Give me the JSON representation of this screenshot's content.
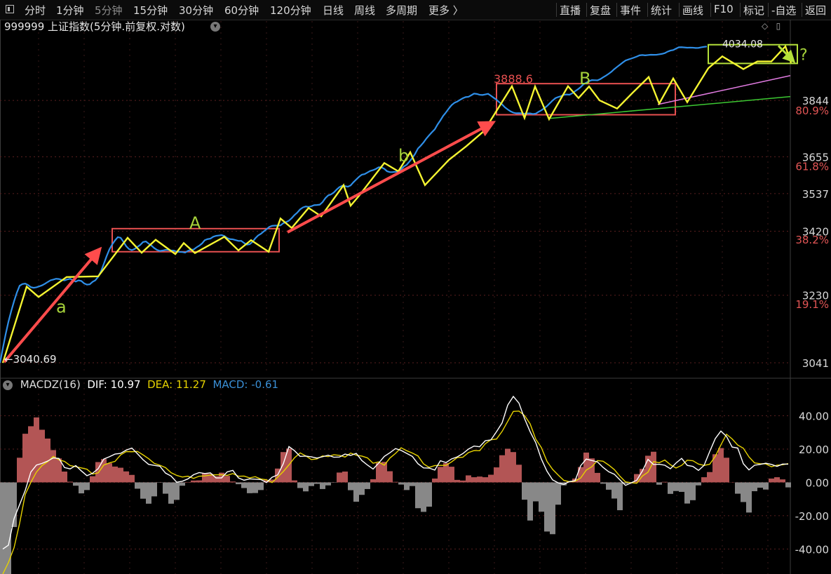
{
  "toolbar": {
    "left_tabs": [
      "分时",
      "1分钟",
      "5分钟",
      "15分钟",
      "30分钟",
      "60分钟",
      "120分钟",
      "日线",
      "周线",
      "多周期",
      "更多 〉"
    ],
    "active_tab": "5分钟",
    "right_tabs": [
      "直播",
      "复盘",
      "事件",
      "统计",
      "画线",
      "F10",
      "标记",
      "-自选",
      "返回"
    ]
  },
  "title": "999999 上证指数(5分钟.前复权.对数)",
  "macd": {
    "name": "MACDZ(16)",
    "dif_label": "DIF: 10.97",
    "dea_label": "DEA: 11.27",
    "macd_label": "MACD: -0.61",
    "colors": {
      "dif": "#ffffff",
      "dea": "#e6d200",
      "macd_pos": "#b35555",
      "macd_neg": "#888888",
      "label": "#3a8fd6"
    }
  },
  "chart_data": [
    {
      "type": "line",
      "scale": "log",
      "ylim": [
        3020,
        4080
      ],
      "price_ticks": [
        {
          "value": 3844,
          "label": "3844"
        },
        {
          "value": 3655,
          "label": "3655"
        },
        {
          "value": 3537,
          "label": "3537"
        },
        {
          "value": 3420,
          "label": "3420"
        },
        {
          "value": 3230,
          "label": "3230"
        },
        {
          "value": 3041,
          "label": "3041"
        }
      ],
      "fib_levels": [
        {
          "value": 3810,
          "label": "80.9%"
        },
        {
          "value": 3625,
          "label": "61.8%"
        },
        {
          "value": 3395,
          "label": "38.2%"
        },
        {
          "value": 3205,
          "label": "19.1%"
        }
      ],
      "annotations": {
        "low": "3040.69",
        "high_b": "3888.6",
        "high_last": "4034.08",
        "wave_labels": [
          "a",
          "A",
          "b",
          "B",
          "?"
        ]
      },
      "price_x": [
        0,
        4,
        8,
        12,
        16,
        20,
        24,
        28,
        32,
        36,
        40,
        44,
        48,
        52,
        56,
        60,
        64,
        68,
        72,
        76,
        80,
        84,
        88,
        92,
        96,
        100,
        104,
        108,
        112,
        116,
        120,
        124,
        128,
        132,
        136,
        140,
        144,
        148,
        152,
        156,
        160,
        164,
        168,
        172,
        176,
        180,
        184,
        188,
        192,
        196,
        200,
        204,
        208,
        212,
        216,
        220,
        224,
        228,
        232,
        236,
        240,
        244,
        248,
        252,
        256,
        260,
        264,
        268,
        272,
        276,
        280,
        284,
        288,
        292,
        296,
        300,
        304,
        308,
        312,
        316,
        320,
        324,
        328,
        332,
        336,
        340,
        344,
        348,
        352,
        356,
        360,
        364,
        368,
        372,
        376,
        380,
        384,
        388,
        392,
        396,
        400,
        404,
        408,
        412,
        416,
        420,
        424,
        428,
        432,
        436,
        440,
        444,
        448,
        452,
        456,
        460,
        464,
        468,
        472,
        476,
        480,
        484,
        488,
        492,
        496,
        500,
        504,
        508,
        512,
        516,
        520,
        524,
        528,
        532,
        536,
        540,
        544,
        548,
        552,
        556,
        560,
        564,
        568,
        572,
        576,
        580,
        584,
        588,
        592,
        596,
        600,
        604,
        608,
        612,
        616,
        620,
        624,
        628,
        632,
        636,
        640,
        644,
        648,
        652,
        656,
        660,
        664,
        668,
        672,
        676,
        680,
        684,
        688,
        692,
        696,
        700,
        704,
        708,
        712,
        716,
        720,
        724,
        728,
        732,
        736,
        740,
        744,
        748,
        752,
        756,
        760,
        764,
        768,
        772,
        776,
        780,
        784,
        788,
        792,
        796,
        800,
        804,
        808,
        812,
        816,
        820,
        824,
        828,
        832,
        836,
        840,
        844,
        848,
        852,
        856,
        860,
        864,
        868,
        872,
        876,
        880,
        884,
        888,
        892,
        896,
        900,
        904,
        908,
        912,
        916,
        920,
        924,
        928,
        932,
        936,
        940,
        944,
        948,
        952,
        956,
        960,
        964,
        968,
        972,
        976,
        980,
        984,
        988,
        992,
        996,
        1000,
        1004,
        1008,
        1012,
        1016,
        1020,
        1024,
        1028,
        1032,
        1036,
        1040,
        1044,
        1048,
        1052,
        1056,
        1060,
        1064,
        1068,
        1072,
        1076,
        1080,
        1084,
        1088,
        1092,
        1096,
        1100,
        1104,
        1108,
        1112,
        1116,
        1120
      ],
      "price": [
        3040.7,
        3080.1,
        3118.8,
        3154.2,
        3184.5,
        3212.5,
        3237.4,
        3257.6,
        3262.5,
        3263.8,
        3259.6,
        3253.4,
        3251.6,
        3252.9,
        3255.7,
        3258.8,
        3263.1,
        3268.4,
        3273.3,
        3275.5,
        3277.9,
        3277.2,
        3274.8,
        3273.0,
        3275.9,
        3277.8,
        3273.4,
        3269.7,
        3273.2,
        3271.4,
        3264.3,
        3260.8,
        3261.7,
        3268.9,
        3273.4,
        3283.8,
        3299.4,
        3321.6,
        3344.4,
        3364.8,
        3380.0,
        3392.1,
        3402.1,
        3400.2,
        3388.1,
        3374.5,
        3365.9,
        3362.7,
        3366.3,
        3372.6,
        3378.4,
        3387.3,
        3389.1,
        3382.4,
        3376.2,
        3368.8,
        3363.3,
        3360.4,
        3361.6,
        3363.5,
        3363.4,
        3361.6,
        3361.5,
        3358.2,
        3357.5,
        3357.0,
        3355.3,
        3360.5,
        3363.8,
        3364.5,
        3370.9,
        3375.9,
        3382.7,
        3392.8,
        3396.1,
        3397.6,
        3403.2,
        3405.9,
        3407.1,
        3408.3,
        3405.4,
        3399.2,
        3396.0,
        3395.4,
        3393.1,
        3390.6,
        3390.7,
        3384.4,
        3379.3,
        3380.4,
        3387.5,
        3398.4,
        3407.1,
        3412.2,
        3419.3,
        3426.0,
        3433.3,
        3436.5,
        3437.3,
        3437.3,
        3437.9,
        3444.7,
        3448.0,
        3452.4,
        3460.4,
        3469.9,
        3477.6,
        3487.5,
        3493.6,
        3496.5,
        3495.1,
        3497.3,
        3500.6,
        3501.1,
        3502.2,
        3510.2,
        3522.6,
        3531.2,
        3534.5,
        3540.4,
        3549.6,
        3557.5,
        3561.7,
        3560.8,
        3558.8,
        3562.9,
        3573.1,
        3581.9,
        3590.5,
        3597.3,
        3599.2,
        3604.2,
        3609.4,
        3611.8,
        3615.8,
        3621.1,
        3620.8,
        3616.1,
        3608.1,
        3605.4,
        3605.6,
        3606.5,
        3607.9,
        3614.2,
        3623.7,
        3629.3,
        3640.1,
        3651.5,
        3664.9,
        3682.3,
        3691.6,
        3702.4,
        3715.3,
        3726.2,
        3736.3,
        3746.0,
        3762.3,
        3776.1,
        3791.4,
        3803.1,
        3816.2,
        3827.9,
        3835.6,
        3840.0,
        3845.9,
        3851.4,
        3855.3,
        3856.4,
        3861.7,
        3867.4,
        3866.2,
        3863.4,
        3862.6,
        3864.5,
        3866.7,
        3860.2,
        3853.1,
        3846.4,
        3837.7,
        3830.2,
        3820.2,
        3812.9,
        3806.6,
        3802.2,
        3800.1,
        3800.5,
        3799.8,
        3798.4,
        3799.6,
        3799.5,
        3797.5,
        3798.9,
        3805.0,
        3810.2,
        3817.0,
        3824.6,
        3834.1,
        3843.5,
        3851.7,
        3855.6,
        3858.5,
        3863.1,
        3864.3,
        3863.6,
        3868.4,
        3875.6,
        3882.1,
        3889.8,
        3899.6,
        3905.4,
        3910.8,
        3914.3,
        3913.9,
        3913.4,
        3917.7,
        3924.1,
        3930.0,
        3936.5,
        3943.8,
        3952.9,
        3960.8,
        3968.3,
        3976.2,
        3983.5,
        3986.9,
        3990.2,
        3993.7,
        3997.5,
        4001.8,
        4003.0,
        4001.8,
        4002.9,
        4004.0,
        4003.6,
        4003.9,
        4005.5,
        4007.1,
        4009.7,
        4015.1,
        4018.9,
        4020.7,
        4025.9,
        4030.7,
        4031.0,
        4030.2,
        4029.2,
        4029.6,
        4029.3,
        4028.2,
        4028.6,
        4030.5,
        4032.3,
        4033.5
      ],
      "zigzag_x": [
        4,
        38,
        55,
        95,
        140,
        182,
        202,
        222,
        250,
        262,
        278,
        320,
        340,
        358,
        383,
        400,
        416,
        440,
        458,
        490,
        500,
        512,
        548,
        568,
        585,
        606,
        640,
        665,
        690,
        730,
        748,
        763,
        783,
        810,
        825,
        840,
        855,
        880,
        902,
        925,
        940,
        960,
        980,
        1010,
        1030,
        1060,
        1080,
        1100,
        1120,
        1128
      ],
      "zigzag": [
        3040.7,
        3255,
        3225,
        3283,
        3285,
        3400,
        3355,
        3394,
        3351,
        3384,
        3354,
        3403,
        3362,
        3393,
        3358,
        3459,
        3430,
        3492,
        3466,
        3564,
        3499,
        3530,
        3635,
        3608,
        3670,
        3564,
        3645,
        3690,
        3740,
        3893,
        3784,
        3892,
        3780,
        3893,
        3852,
        3892,
        3844,
        3816,
        3870,
        3925,
        3833,
        3920,
        3838,
        3956,
        3998,
        3953,
        3980,
        3980,
        4034,
        3975
      ],
      "boxes": [
        {
          "name": "A",
          "x0": 160,
          "x1": 398,
          "p_high": 3428,
          "p_low": 3358
        },
        {
          "name": "B",
          "x0": 708,
          "x1": 963,
          "p_high": 3902,
          "p_low": 3795
        },
        {
          "name": "last",
          "x0": 1010,
          "x1": 1137,
          "p_high": 4040,
          "p_low": 3973
        }
      ]
    },
    {
      "type": "bar",
      "series": [
        "DIF",
        "DEA",
        "MACD"
      ],
      "ylim": [
        -55,
        60
      ],
      "ticks": [
        {
          "value": 40,
          "label": "40.00"
        },
        {
          "value": 20,
          "label": "20.00"
        },
        {
          "value": 0,
          "label": "0.00"
        },
        {
          "value": -20,
          "label": "-20.00"
        },
        {
          "value": -40,
          "label": "-40.00"
        }
      ],
      "x": [
        0,
        8,
        16,
        24,
        32,
        40,
        48,
        56,
        64,
        72,
        80,
        88,
        96,
        104,
        112,
        120,
        128,
        136,
        144,
        152,
        160,
        168,
        176,
        184,
        192,
        200,
        208,
        216,
        224,
        232,
        240,
        248,
        256,
        264,
        272,
        280,
        288,
        296,
        304,
        312,
        320,
        328,
        336,
        344,
        352,
        360,
        368,
        376,
        384,
        392,
        400,
        408,
        416,
        424,
        432,
        440,
        448,
        456,
        464,
        472,
        480,
        488,
        496,
        504,
        512,
        520,
        528,
        536,
        544,
        552,
        560,
        568,
        576,
        584,
        592,
        600,
        608,
        616,
        624,
        632,
        640,
        648,
        656,
        664,
        672,
        680,
        688,
        696,
        704,
        712,
        720,
        728,
        736,
        744,
        752,
        760,
        768,
        776,
        784,
        792,
        800,
        808,
        816,
        824,
        832,
        840,
        848,
        856,
        864,
        872,
        880,
        888,
        896,
        904,
        912,
        920,
        928,
        936,
        944,
        952,
        960,
        968,
        976,
        984,
        992,
        1000,
        1008,
        1016,
        1024,
        1032,
        1040,
        1048,
        1056,
        1064,
        1072,
        1080,
        1088,
        1096,
        1104,
        1112,
        1120
      ],
      "dif": [
        -40.0,
        -37.7,
        -21.8,
        -13.3,
        -4.8,
        6.2,
        10.4,
        11.4,
        12.8,
        14.7,
        14.4,
        8.9,
        8.1,
        10.1,
        6.9,
        4.0,
        5.5,
        8.2,
        14.0,
        15.4,
        17.0,
        17.4,
        19.4,
        20.6,
        17.2,
        13.6,
        10.8,
        10.2,
        9.7,
        5.6,
        3.8,
        0.1,
        0.7,
        2.1,
        4.6,
        5.9,
        5.3,
        5.7,
        2.7,
        2.7,
        6.3,
        7.2,
        2.7,
        1.3,
        2.1,
        1.9,
        1.7,
        -0.1,
        3.1,
        4.5,
        11.2,
        21.5,
        19.0,
        15.6,
        15.8,
        15.3,
        14.6,
        15.4,
        16.3,
        15.1,
        15.2,
        17.0,
        16.2,
        17.4,
        13.1,
        10.4,
        8.0,
        11.6,
        15.6,
        17.8,
        20.3,
        19.2,
        17.4,
        15.6,
        11.2,
        8.7,
        8.6,
        7.4,
        13.0,
        11.9,
        14.1,
        15.3,
        17.3,
        20.0,
        21.8,
        21.4,
        25.0,
        25.5,
        30.4,
        35.7,
        46.4,
        51.6,
        47.6,
        38.3,
        30.4,
        23.8,
        14.0,
        6.7,
        1.5,
        -0.3,
        -1.2,
        0.5,
        1.0,
        10.0,
        14.0,
        13.1,
        12.3,
        9.0,
        6.4,
        4.9,
        1.5,
        -1.8,
        -0.3,
        1.3,
        6.8,
        13.8,
        10.7,
        10.9,
        10.3,
        8.2,
        11.6,
        14.4,
        10.2,
        9.6,
        7.2,
        10.2,
        18.5,
        26.3,
        30.8,
        27.6,
        21.2,
        20.6,
        11.2,
        7.5,
        10.3,
        10.8,
        11.5,
        10.8,
        9.6,
        11.0,
        10.97
      ],
      "dea": [
        -55.0,
        -48.1,
        -39.3,
        -24.5,
        -7.2,
        -0.0,
        6.2,
        10.1,
        12.4,
        15.6,
        13.5,
        12.6,
        10.1,
        9.4,
        8.7,
        7.9,
        5.0,
        5.7,
        10.4,
        11.7,
        12.6,
        16.5,
        18.5,
        18.4,
        18.6,
        16.5,
        14.2,
        11.4,
        10.3,
        8.9,
        5.8,
        4.2,
        3.2,
        3.7,
        2.4,
        3.7,
        3.9,
        4.4,
        4.6,
        4.6,
        4.2,
        5.3,
        3.7,
        3.8,
        2.7,
        3.4,
        2.0,
        1.6,
        -0.1,
        3.2,
        6.5,
        10.5,
        14.8,
        17.7,
        15.9,
        13.7,
        14.1,
        15.9,
        15.5,
        16.6,
        16.2,
        15.2,
        17.6,
        16.3,
        15.8,
        14.7,
        11.5,
        12.3,
        10.3,
        14.6,
        17.4,
        20.8,
        19.0,
        17.6,
        15.9,
        11.1,
        9.0,
        10.1,
        10.2,
        10.2,
        12.3,
        14.9,
        15.1,
        17.9,
        19.1,
        19.0,
        23.2,
        25.6,
        26.0,
        30.6,
        36.6,
        42.6,
        42.8,
        40.1,
        35.1,
        25.9,
        20.9,
        12.6,
        7.8,
        4.4,
        1.2,
        0.4,
        0.7,
        2.6,
        7.4,
        9.4,
        13.1,
        12.7,
        10.4,
        7.7,
        3.7,
        0.3,
        -0.2,
        -0.5,
        3.8,
        6.1,
        12.5,
        11.8,
        13.4,
        10.6,
        8.6,
        10.2,
        13.3,
        13.0,
        11.0,
        10.2,
        10.9,
        15.6,
        22.5,
        28.9,
        26.1,
        22.4,
        20.5,
        15.3,
        11.7,
        11.2,
        11.1,
        9.4,
        10.3,
        10.6,
        11.27
      ],
      "macd": [
        -59.6,
        -58.1,
        -26.8,
        14.8,
        29.2,
        33.7,
        39.0,
        31.6,
        26.3,
        19.4,
        14.4,
        6.5,
        0.4,
        -2.0,
        -6.6,
        -4.6,
        3.7,
        12.2,
        14.0,
        11.5,
        9.5,
        8.8,
        6.6,
        4.5,
        -3.8,
        -9.8,
        -12.8,
        -8.4,
        -0.2,
        -6.8,
        -12.8,
        -10.5,
        -2.0,
        0.2,
        1.1,
        1.2,
        5.6,
        5.1,
        3.8,
        5.8,
        3.9,
        0.5,
        -1.1,
        -3.4,
        -6.5,
        -6.4,
        -4.6,
        1.4,
        1.7,
        8.3,
        18.2,
        20.3,
        1.2,
        -3.4,
        -5.4,
        -2.2,
        -0.9,
        -4.0,
        -1.8,
        -0.2,
        5.9,
        6.5,
        -4.7,
        -11.6,
        -7.5,
        -4.0,
        1.9,
        11.7,
        12.3,
        6.7,
        0.3,
        -1.3,
        -4.6,
        -2.2,
        -15.5,
        -17.7,
        -14.6,
        2.3,
        9.3,
        11.6,
        9.4,
        1.5,
        1.1,
        4.2,
        3.1,
        3.5,
        3.1,
        4.6,
        9.0,
        16.3,
        20.2,
        18.2,
        10.6,
        -10.4,
        -22.9,
        -11.4,
        -17.6,
        -29.5,
        -31.1,
        -13.4,
        -1.8,
        0.6,
        2.3,
        9.2,
        17.9,
        14.4,
        5.7,
        -0.8,
        -4.4,
        -9.7,
        -16.7,
        -0.8,
        -0.3,
        5.0,
        8.1,
        16.0,
        18.4,
        -1.4,
        0.3,
        -6.9,
        -5.2,
        -5.7,
        -12.7,
        -10.7,
        -1.8,
        3.1,
        6.2,
        16.9,
        20.6,
        14.8,
        0.1,
        -6.8,
        -11.8,
        -18.1,
        -5.3,
        -3.2,
        -4.3,
        2.3,
        3.1,
        1.8,
        -3.0,
        -0.61
      ]
    }
  ]
}
